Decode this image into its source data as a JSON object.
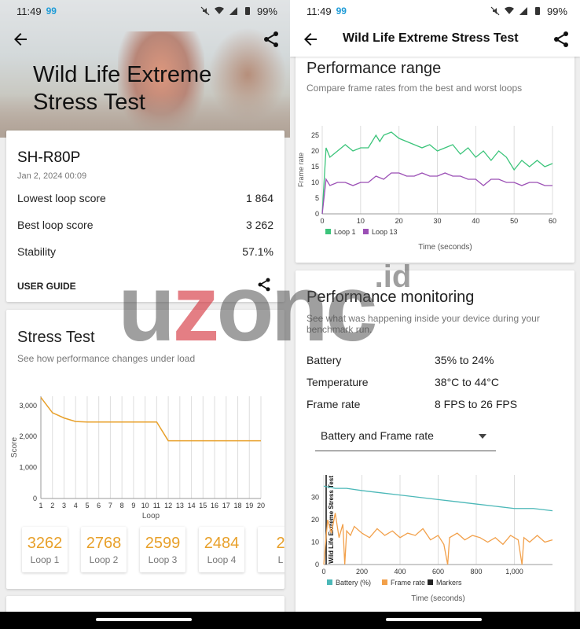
{
  "status_bar": {
    "time": "11:49",
    "badge": "99",
    "battery": "99%"
  },
  "left": {
    "hero_title": "Wild Life Extreme Stress Test",
    "device": {
      "name": "SH-R80P",
      "date": "Jan 2, 2024 00:09",
      "rows": [
        {
          "label": "Lowest loop score",
          "value": "1 864"
        },
        {
          "label": "Best loop score",
          "value": "3 262"
        },
        {
          "label": "Stability",
          "value": "57.1%"
        }
      ],
      "user_guide": "USER GUIDE"
    },
    "stress": {
      "title": "Stress Test",
      "subtitle": "See how performance changes under load",
      "tiles": [
        {
          "value": "3262",
          "label": "Loop 1"
        },
        {
          "value": "2768",
          "label": "Loop 2"
        },
        {
          "value": "2599",
          "label": "Loop 3"
        },
        {
          "value": "2484",
          "label": "Loop 4"
        },
        {
          "value": "2",
          "label": "L"
        }
      ]
    }
  },
  "right": {
    "title": "Wild Life Extreme Stress Test",
    "perf_range": {
      "title": "Performance range",
      "subtitle": "Compare frame rates from the best and worst loops"
    },
    "monitoring": {
      "title": "Performance monitoring",
      "subtitle": "See what was happening inside your device during your benchmark run.",
      "rows": [
        {
          "label": "Battery",
          "value": "35% to 24%"
        },
        {
          "label": "Temperature",
          "value": "38°C to 44°C"
        },
        {
          "label": "Frame rate",
          "value": "8 FPS to 26 FPS"
        }
      ],
      "dropdown_value": "Battery and Frame rate"
    }
  },
  "watermark": {
    "brand_a": "u",
    "brand_z": "z",
    "brand_b": "onc",
    "suffix": ".id"
  },
  "colors": {
    "accent": "#e8a02a",
    "loop1": "#3bc47a",
    "loop13": "#9b4fb5",
    "battery": "#4cb8b8",
    "framerate": "#f2a04a"
  },
  "chart_data": [
    {
      "type": "line",
      "title": "",
      "xlabel": "Loop",
      "ylabel": "Score",
      "x": [
        1,
        2,
        3,
        4,
        5,
        6,
        7,
        8,
        9,
        10,
        11,
        12,
        13,
        14,
        15,
        16,
        17,
        18,
        19,
        20
      ],
      "series": [
        {
          "name": "",
          "values": [
            3262,
            2768,
            2599,
            2484,
            2470,
            2470,
            2470,
            2470,
            2470,
            2470,
            2470,
            1864,
            1864,
            1864,
            1864,
            1864,
            1864,
            1864,
            1864,
            1864
          ]
        }
      ],
      "ylim": [
        0,
        3300
      ],
      "yticks": [
        0,
        1000,
        2000,
        3000
      ],
      "ytick_labels": [
        "0",
        "1,000",
        "2,000",
        "3,000"
      ]
    },
    {
      "type": "line",
      "title": "",
      "xlabel": "Time (seconds)",
      "ylabel": "Frame rate",
      "xlim": [
        0,
        60
      ],
      "ylim": [
        0,
        28
      ],
      "xticks": [
        0,
        10,
        20,
        30,
        40,
        50,
        60
      ],
      "yticks": [
        0,
        5,
        10,
        15,
        20,
        25
      ],
      "series": [
        {
          "name": "Loop 1",
          "x": [
            0,
            1,
            2,
            4,
            6,
            8,
            10,
            12,
            14,
            15,
            16,
            18,
            20,
            22,
            24,
            26,
            28,
            30,
            32,
            34,
            36,
            38,
            40,
            42,
            44,
            46,
            48,
            50,
            52,
            54,
            56,
            58,
            60
          ],
          "values": [
            0,
            21,
            18,
            20,
            22,
            20,
            21,
            21,
            25,
            23,
            25,
            26,
            24,
            23,
            22,
            21,
            22,
            20,
            21,
            22,
            19,
            21,
            18,
            20,
            17,
            20,
            18,
            14,
            17,
            15,
            17,
            15,
            16
          ]
        },
        {
          "name": "Loop 13",
          "x": [
            0,
            1,
            2,
            4,
            6,
            8,
            10,
            12,
            14,
            16,
            18,
            20,
            22,
            24,
            26,
            28,
            30,
            32,
            34,
            36,
            38,
            40,
            42,
            44,
            46,
            48,
            50,
            52,
            54,
            56,
            58,
            60
          ],
          "values": [
            0,
            11,
            9,
            10,
            10,
            9,
            10,
            10,
            12,
            11,
            13,
            13,
            12,
            12,
            13,
            12,
            12,
            13,
            12,
            12,
            11,
            11,
            9,
            11,
            11,
            10,
            10,
            9,
            10,
            10,
            9,
            9
          ]
        }
      ]
    },
    {
      "type": "line",
      "title": "",
      "xlabel": "Time (seconds)",
      "ylabel": "",
      "xlim": [
        0,
        1200
      ],
      "ylim": [
        0,
        40
      ],
      "xticks": [
        0,
        200,
        400,
        600,
        800,
        1000
      ],
      "xtick_labels": [
        "0",
        "200",
        "400",
        "600",
        "800",
        "1,000"
      ],
      "yticks": [
        0,
        10,
        20,
        30
      ],
      "marker_label": "Wild Life Extreme Stress Test",
      "series": [
        {
          "name": "Battery (%)",
          "x": [
            0,
            60,
            120,
            200,
            300,
            400,
            500,
            600,
            700,
            800,
            900,
            1000,
            1100,
            1200
          ],
          "values": [
            35,
            34,
            34,
            33,
            32,
            31,
            30,
            29,
            28,
            27,
            26,
            25,
            25,
            24
          ]
        },
        {
          "name": "Frame rate",
          "x": [
            0,
            20,
            40,
            60,
            80,
            100,
            110,
            120,
            140,
            160,
            200,
            240,
            280,
            320,
            360,
            400,
            440,
            480,
            520,
            560,
            600,
            630,
            650,
            660,
            700,
            740,
            780,
            820,
            860,
            900,
            940,
            980,
            1020,
            1040,
            1050,
            1080,
            1120,
            1160,
            1200
          ],
          "values": [
            0,
            20,
            14,
            23,
            12,
            18,
            0,
            15,
            13,
            17,
            14,
            12,
            16,
            13,
            15,
            12,
            14,
            13,
            16,
            11,
            13,
            9,
            0,
            12,
            14,
            11,
            13,
            12,
            10,
            12,
            9,
            13,
            11,
            0,
            12,
            10,
            13,
            10,
            11
          ]
        },
        {
          "name": "Markers",
          "x": [],
          "values": []
        }
      ]
    }
  ]
}
